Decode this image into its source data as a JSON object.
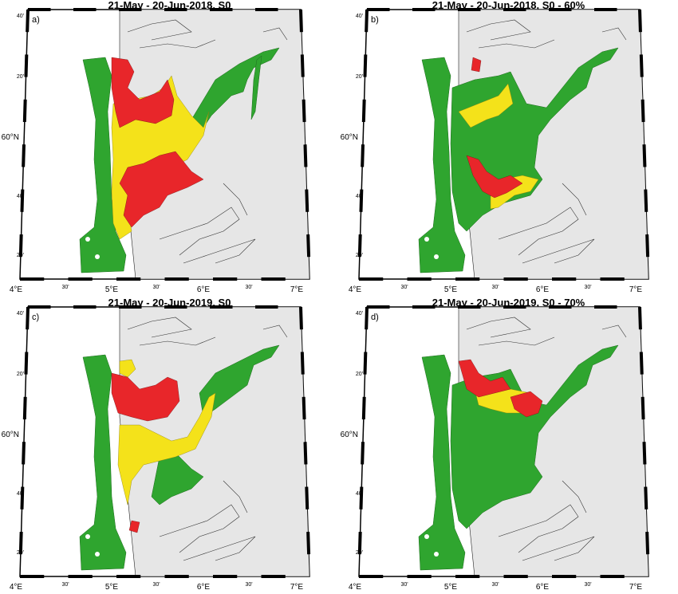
{
  "colors": {
    "land": "#e6e6e6",
    "sea": "#ffffff",
    "green": "#2fa52f",
    "yellow": "#f4e21a",
    "red": "#e8262a",
    "coast": "#222222"
  },
  "x_ticks": {
    "major": [
      "4°E",
      "5°E",
      "6°E",
      "7°E"
    ],
    "minor": [
      "30'",
      "30'",
      "30'"
    ]
  },
  "y_ticks": {
    "minor_top": "40'",
    "minor_upper": "20'",
    "major": "60°N",
    "minor_lower": "40'",
    "minor_bottom": "20'"
  },
  "panels": [
    {
      "letter": "a)",
      "title": "21-May - 20-Jun-2018, S0"
    },
    {
      "letter": "b)",
      "title": "21-May - 20-Jun-2018, S0 - 60%"
    },
    {
      "letter": "c)",
      "title": "21-May - 20-Jun-2019, S0"
    },
    {
      "letter": "d)",
      "title": "21-May - 20-Jun-2019, S0 - 70%"
    }
  ]
}
